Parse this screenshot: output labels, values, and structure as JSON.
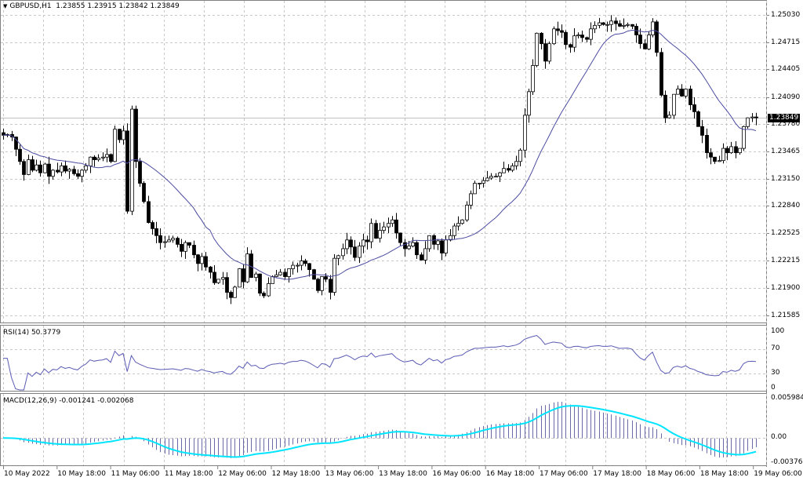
{
  "header": {
    "symbol": "GBPUSD,H1",
    "ohlc": "1.23855 1.23915 1.23842 1.23849"
  },
  "price_axis": {
    "labels": [
      "1.25030",
      "1.24715",
      "1.24405",
      "1.24090",
      "1.23780",
      "1.23465",
      "1.23150",
      "1.22840",
      "1.22525",
      "1.22215",
      "1.21900",
      "1.21585"
    ],
    "current_price": "1.23849"
  },
  "rsi_panel": {
    "title": "RSI(14) 50.3779",
    "levels": [
      "100",
      "70",
      "30",
      "0"
    ]
  },
  "macd_panel": {
    "title": "MACD(12,26,9) -0.001241 -0.002068",
    "levels": [
      "0.005984",
      "0.00",
      "-0.003762"
    ]
  },
  "time_axis": {
    "labels": [
      "10 May 2022",
      "10 May 18:00",
      "11 May 06:00",
      "11 May 18:00",
      "12 May 06:00",
      "12 May 18:00",
      "13 May 06:00",
      "13 May 18:00",
      "16 May 06:00",
      "16 May 18:00",
      "17 May 06:00",
      "17 May 18:00",
      "18 May 06:00",
      "18 May 18:00",
      "19 May 06:00"
    ]
  },
  "colors": {
    "ma_line": "#4b4ba0",
    "rsi_line": "#5a5ab4",
    "macd_hist": "#6a6aa8",
    "macd_signal": "#00e5ff",
    "grid": "#c8c8c8",
    "bull_body": "#ffffff",
    "bear_body": "#000000"
  },
  "chart_data": [
    {
      "type": "candlestick",
      "title": "GBPUSD,H1 1.23855 1.23915 1.23842 1.23849",
      "ylim": [
        1.215,
        1.252
      ],
      "y_ticks": [
        1.2503,
        1.24715,
        1.24405,
        1.2409,
        1.2378,
        1.23465,
        1.2315,
        1.2284,
        1.22525,
        1.22215,
        1.219,
        1.21585
      ],
      "x_ticks": [
        "10 May 2022",
        "10 May 18:00",
        "11 May 06:00",
        "11 May 18:00",
        "12 May 06:00",
        "12 May 18:00",
        "13 May 06:00",
        "13 May 18:00",
        "16 May 06:00",
        "16 May 18:00",
        "17 May 06:00",
        "17 May 18:00",
        "18 May 06:00",
        "18 May 18:00",
        "19 May 06:00"
      ],
      "current_price": 1.23849,
      "closes": [
        1.2365,
        1.2366,
        1.2363,
        1.2349,
        1.2335,
        1.232,
        1.2337,
        1.2325,
        1.2331,
        1.2322,
        1.2332,
        1.2318,
        1.2325,
        1.2323,
        1.233,
        1.2324,
        1.2326,
        1.2321,
        1.2318,
        1.2325,
        1.233,
        1.234,
        1.2337,
        1.2339,
        1.234,
        1.2343,
        1.2335,
        1.2372,
        1.236,
        1.237,
        1.2278,
        1.2395,
        1.2335,
        1.231,
        1.2289,
        1.2265,
        1.2258,
        1.225,
        1.2242,
        1.2243,
        1.2245,
        1.2247,
        1.224,
        1.2232,
        1.2242,
        1.2239,
        1.2228,
        1.2218,
        1.2226,
        1.2214,
        1.2208,
        1.2196,
        1.22,
        1.2202,
        1.2185,
        1.2179,
        1.2191,
        1.2212,
        1.2197,
        1.2229,
        1.2202,
        1.2206,
        1.2184,
        1.2181,
        1.2195,
        1.2203,
        1.2205,
        1.2208,
        1.2203,
        1.2212,
        1.2216,
        1.2216,
        1.2221,
        1.2218,
        1.2211,
        1.22,
        1.2187,
        1.2203,
        1.22,
        1.2185,
        1.2224,
        1.2227,
        1.2235,
        1.2245,
        1.2237,
        1.2225,
        1.2238,
        1.2245,
        1.2243,
        1.2264,
        1.2247,
        1.2256,
        1.226,
        1.2264,
        1.2268,
        1.2253,
        1.2242,
        1.2235,
        1.2238,
        1.2242,
        1.2228,
        1.2222,
        1.2235,
        1.225,
        1.224,
        1.2244,
        1.223,
        1.2245,
        1.225,
        1.2261,
        1.2264,
        1.2268,
        1.2285,
        1.2298,
        1.231,
        1.231,
        1.2313,
        1.2316,
        1.2318,
        1.2318,
        1.2322,
        1.2327,
        1.2325,
        1.233,
        1.2335,
        1.2348,
        1.2388,
        1.2415,
        1.2445,
        1.2482,
        1.247,
        1.245,
        1.247,
        1.2487,
        1.2485,
        1.2483,
        1.2469,
        1.2466,
        1.2479,
        1.248,
        1.2477,
        1.2475,
        1.2487,
        1.2491,
        1.2494,
        1.2492,
        1.2492,
        1.2496,
        1.2493,
        1.249,
        1.2491,
        1.2492,
        1.249,
        1.248,
        1.247,
        1.2464,
        1.248,
        1.2495,
        1.246,
        1.2411,
        1.2385,
        1.2388,
        1.2412,
        1.2418,
        1.241,
        1.2418,
        1.24,
        1.2392,
        1.2375,
        1.2365,
        1.2345,
        1.234,
        1.2335,
        1.2336,
        1.235,
        1.2345,
        1.2352,
        1.2345,
        1.235,
        1.2375,
        1.2385,
        1.2386,
        1.2385
      ]
    },
    {
      "type": "line",
      "title": "RSI(14) 50.3779",
      "ylim": [
        0,
        100
      ],
      "y_ticks": [
        100,
        70,
        30,
        0
      ],
      "current_value": 50.3779
    },
    {
      "type": "bar+line",
      "title": "MACD(12,26,9) -0.001241 -0.002068",
      "ylim": [
        -0.003762,
        0.005984
      ],
      "y_ticks": [
        0.005984,
        0.0,
        -0.003762
      ],
      "main": -0.001241,
      "signal": -0.002068
    }
  ]
}
